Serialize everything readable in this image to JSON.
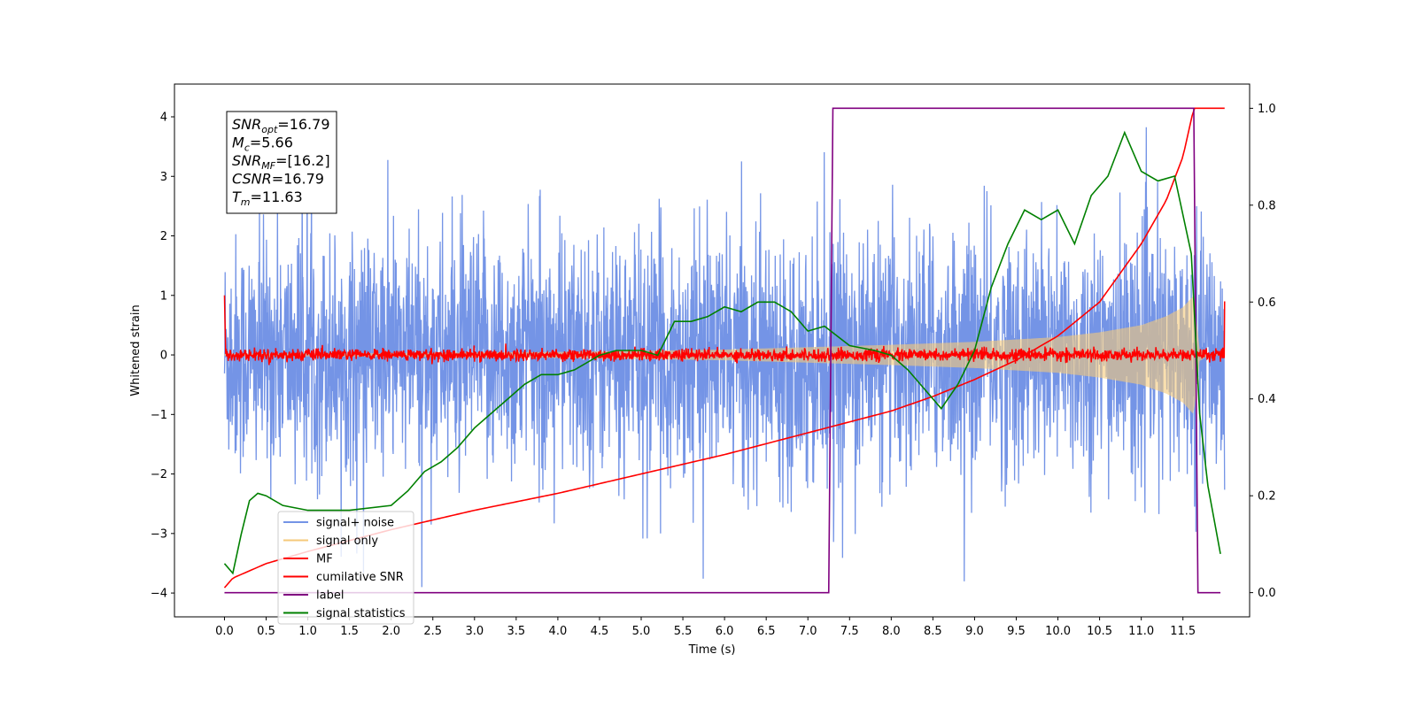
{
  "chart_data": {
    "type": "line",
    "xlabel": "Time (s)",
    "ylabel": "Whitened strain",
    "xlim": [
      -0.6,
      12.3
    ],
    "ylim": [
      -4.4,
      4.55
    ],
    "y2lim": [
      -0.05,
      1.05
    ],
    "grid": false,
    "legend_position": "lower-left",
    "x_ticks": [
      "0.0",
      "0.5",
      "1.0",
      "1.5",
      "2.0",
      "2.5",
      "3.0",
      "3.5",
      "4.0",
      "4.5",
      "5.0",
      "5.5",
      "6.0",
      "6.5",
      "7.0",
      "7.5",
      "8.0",
      "8.5",
      "9.0",
      "9.5",
      "10.0",
      "10.5",
      "11.0",
      "11.5"
    ],
    "y_ticks": [
      "4",
      "3",
      "2",
      "1",
      "0",
      "−1",
      "−2",
      "−3",
      "−4"
    ],
    "y2_ticks": [
      "1.0",
      "0.8",
      "0.6",
      "0.4",
      "0.2",
      "0.0"
    ],
    "annotation": [
      {
        "sym": "SNR",
        "sub": "opt",
        "val": "=16.79"
      },
      {
        "sym": "M",
        "sub": "c",
        "val": "=5.66"
      },
      {
        "sym": "SNR",
        "sub": "MF",
        "val": "=[16.2]"
      },
      {
        "sym": "CSNR",
        "sub": "",
        "val": "=16.79"
      },
      {
        "sym": "T",
        "sub": "m",
        "val": "=11.63"
      }
    ],
    "series": [
      {
        "name": "signal+ noise",
        "color": "#7494e6",
        "axis": "left",
        "noise_sigma": 1.0,
        "x_range": [
          0,
          12
        ]
      },
      {
        "name": "signal only",
        "color": "#f5c97a",
        "axis": "left",
        "envelope": {
          "x": [
            0,
            2,
            4,
            6,
            8,
            9,
            10,
            10.5,
            11,
            11.3,
            11.5,
            11.63,
            11.7,
            11.8,
            12.0
          ],
          "amp": [
            0.02,
            0.03,
            0.05,
            0.09,
            0.17,
            0.22,
            0.3,
            0.38,
            0.5,
            0.65,
            0.8,
            1.0,
            0.1,
            0.02,
            0.0
          ]
        }
      },
      {
        "name": "MF",
        "color": "#ff0000",
        "axis": "left",
        "noise_sigma": 0.05,
        "x_range": [
          0,
          12
        ],
        "edge_values": [
          1.0,
          0.9
        ]
      },
      {
        "name": "cumilative SNR",
        "color": "#ff0000",
        "axis": "right",
        "x": [
          0,
          0.1,
          0.5,
          1,
          2,
          3,
          4,
          5,
          6,
          7,
          8,
          8.5,
          9,
          9.5,
          10,
          10.5,
          11,
          11.3,
          11.5,
          11.63,
          12.0
        ],
        "y": [
          0.01,
          0.03,
          0.06,
          0.085,
          0.13,
          0.17,
          0.205,
          0.245,
          0.285,
          0.33,
          0.375,
          0.405,
          0.44,
          0.48,
          0.53,
          0.6,
          0.72,
          0.81,
          0.9,
          1.0,
          1.0
        ]
      },
      {
        "name": "label",
        "color": "#800080",
        "axis": "right",
        "x": [
          0,
          7.25,
          7.3,
          11.63,
          11.68,
          11.95
        ],
        "y": [
          0,
          0,
          1,
          1,
          0,
          0
        ]
      },
      {
        "name": "signal statistics",
        "color": "#008000",
        "axis": "right",
        "x": [
          0,
          0.1,
          0.2,
          0.3,
          0.4,
          0.5,
          0.7,
          1.0,
          1.5,
          2.0,
          2.2,
          2.4,
          2.6,
          2.8,
          3.0,
          3.2,
          3.4,
          3.6,
          3.8,
          4.0,
          4.2,
          4.5,
          4.7,
          5.0,
          5.2,
          5.4,
          5.6,
          5.8,
          6.0,
          6.2,
          6.4,
          6.6,
          6.8,
          7.0,
          7.2,
          7.5,
          7.8,
          8.0,
          8.2,
          8.4,
          8.6,
          8.8,
          9.0,
          9.2,
          9.4,
          9.6,
          9.8,
          10.0,
          10.2,
          10.4,
          10.6,
          10.8,
          11.0,
          11.2,
          11.4,
          11.6,
          11.7,
          11.8,
          11.95
        ],
        "y": [
          0.06,
          0.04,
          0.12,
          0.19,
          0.205,
          0.2,
          0.18,
          0.17,
          0.17,
          0.18,
          0.21,
          0.25,
          0.27,
          0.3,
          0.34,
          0.37,
          0.4,
          0.43,
          0.45,
          0.45,
          0.46,
          0.49,
          0.5,
          0.5,
          0.49,
          0.56,
          0.56,
          0.57,
          0.59,
          0.58,
          0.6,
          0.6,
          0.58,
          0.54,
          0.55,
          0.51,
          0.5,
          0.49,
          0.46,
          0.42,
          0.38,
          0.43,
          0.5,
          0.63,
          0.72,
          0.79,
          0.77,
          0.79,
          0.72,
          0.82,
          0.86,
          0.95,
          0.87,
          0.85,
          0.86,
          0.7,
          0.37,
          0.22,
          0.08
        ]
      }
    ]
  }
}
